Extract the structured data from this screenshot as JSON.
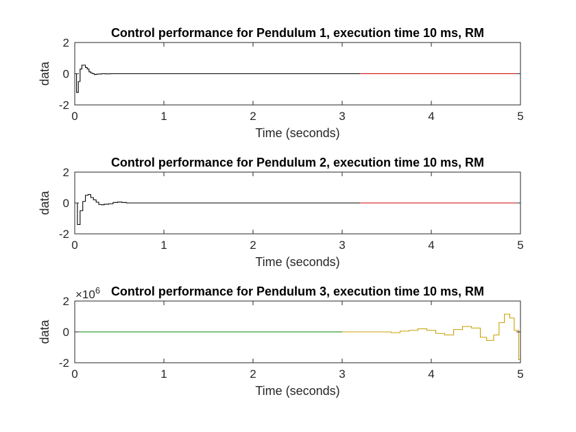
{
  "chart_data": [
    {
      "type": "line",
      "title": "Control performance for Pendulum 1, execution time 10 ms, RM",
      "xlabel": "Time (seconds)",
      "ylabel": "data",
      "xlim": [
        0,
        5
      ],
      "ylim": [
        -2,
        2
      ],
      "xticks": [
        "0",
        "1",
        "2",
        "3",
        "4",
        "5"
      ],
      "yticks": [
        "-2",
        "0",
        "2"
      ],
      "exponent": "",
      "grid": false,
      "colors": {
        "early": "#000000",
        "late": "#cc0000"
      },
      "color_switch_x": 3.2,
      "series": [
        {
          "x": [
            0,
            0.02,
            0.02,
            0.04,
            0.04,
            0.06,
            0.06,
            0.08,
            0.08,
            0.1,
            0.1,
            0.12,
            0.12,
            0.14,
            0.14,
            0.16,
            0.16,
            0.18,
            0.18,
            0.2,
            0.2,
            0.22,
            0.22,
            0.24,
            0.24,
            0.26,
            0.26,
            0.3,
            0.3,
            0.34,
            0.34,
            0.4,
            0.4,
            5.0
          ],
          "y": [
            0,
            0,
            -1.2,
            -1.2,
            -0.5,
            -0.5,
            0.3,
            0.3,
            0.55,
            0.55,
            0.55,
            0.55,
            0.4,
            0.4,
            0.3,
            0.3,
            0.12,
            0.12,
            0.05,
            0.05,
            0.0,
            0.0,
            -0.05,
            -0.05,
            -0.03,
            -0.03,
            -0.02,
            -0.02,
            0.0,
            0.0,
            -0.01,
            -0.01,
            0.0,
            0.0
          ]
        }
      ]
    },
    {
      "type": "line",
      "title": "Control performance for Pendulum 2, execution time 10 ms, RM",
      "xlabel": "Time (seconds)",
      "ylabel": "data",
      "xlim": [
        0,
        5
      ],
      "ylim": [
        -2,
        2
      ],
      "xticks": [
        "0",
        "1",
        "2",
        "3",
        "4",
        "5"
      ],
      "yticks": [
        "-2",
        "0",
        "2"
      ],
      "exponent": "",
      "grid": false,
      "colors": {
        "early": "#000000",
        "late": "#cc0000"
      },
      "color_switch_x": 3.2,
      "series": [
        {
          "x": [
            0,
            0.03,
            0.03,
            0.06,
            0.06,
            0.09,
            0.09,
            0.12,
            0.12,
            0.15,
            0.15,
            0.18,
            0.18,
            0.21,
            0.21,
            0.24,
            0.24,
            0.27,
            0.27,
            0.3,
            0.3,
            0.33,
            0.33,
            0.38,
            0.38,
            0.43,
            0.43,
            0.48,
            0.48,
            0.53,
            0.53,
            0.58,
            0.58,
            0.65,
            0.65,
            5.0
          ],
          "y": [
            0,
            0,
            -1.4,
            -1.4,
            -0.5,
            -0.5,
            0.1,
            0.1,
            0.5,
            0.5,
            0.55,
            0.55,
            0.35,
            0.35,
            0.2,
            0.2,
            0.05,
            0.05,
            -0.1,
            -0.1,
            -0.12,
            -0.12,
            -0.08,
            -0.08,
            -0.05,
            -0.05,
            0.03,
            0.03,
            0.06,
            0.06,
            0.03,
            0.03,
            0.0,
            0.0,
            0.0,
            0.0
          ]
        }
      ]
    },
    {
      "type": "line",
      "title": "Control performance for Pendulum 3, execution time 10 ms, RM",
      "xlabel": "Time (seconds)",
      "ylabel": "data",
      "xlim": [
        0,
        5
      ],
      "ylim": [
        -2,
        2
      ],
      "xticks": [
        "0",
        "1",
        "2",
        "3",
        "4",
        "5"
      ],
      "yticks": [
        "-2",
        "0",
        "2"
      ],
      "exponent": "×10",
      "exponent_power": "6",
      "grid": false,
      "colors": {
        "early": "#008000",
        "late": "#c8a000"
      },
      "color_switch_x": 3.0,
      "series": [
        {
          "x": [
            0,
            3.55,
            3.55,
            3.65,
            3.65,
            3.75,
            3.75,
            3.85,
            3.85,
            3.95,
            3.95,
            4.05,
            4.05,
            4.15,
            4.15,
            4.25,
            4.25,
            4.35,
            4.35,
            4.45,
            4.45,
            4.55,
            4.55,
            4.62,
            4.62,
            4.7,
            4.7,
            4.76,
            4.76,
            4.82,
            4.82,
            4.88,
            4.88,
            4.93,
            4.93,
            4.98,
            4.98,
            5.0
          ],
          "y": [
            0,
            0,
            -0.05,
            -0.05,
            0.05,
            0.05,
            0.1,
            0.1,
            0.2,
            0.2,
            0.1,
            0.1,
            -0.1,
            -0.1,
            -0.2,
            -0.2,
            0.15,
            0.15,
            0.35,
            0.35,
            0.25,
            0.25,
            -0.35,
            -0.35,
            -0.55,
            -0.55,
            -0.2,
            -0.2,
            0.6,
            0.6,
            1.15,
            1.15,
            0.9,
            0.9,
            0.1,
            0.1,
            -1.8,
            -1.8
          ]
        }
      ]
    }
  ]
}
